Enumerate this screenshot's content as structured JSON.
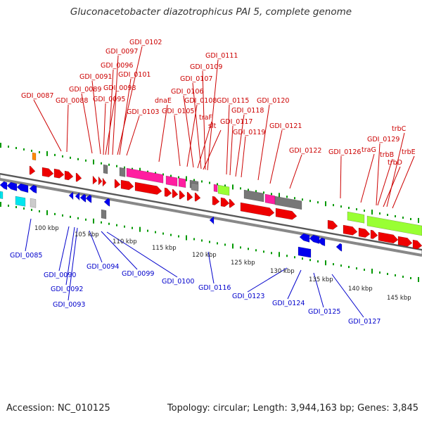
{
  "title": "Gluconacetobacter diazotrophicus PAI 5, complete genome",
  "footer": {
    "accession": "Accession: NC_010125",
    "summary": "Topology: circular; Length: 3,944,163 bp; Genes: 3,845"
  },
  "colors": {
    "forward_label": "#cc0000",
    "reverse_label": "#0000cc",
    "forward_gene": "#ee0000",
    "reverse_gene": "#0000ee",
    "backbone": "#999999",
    "ticks": "#009900",
    "pink": "#ff1ea0",
    "grey": "#777777",
    "lime": "#99ff33",
    "cyan": "#00e5ee",
    "orange": "#ff8800"
  },
  "scale_ticks": [
    "100 kbp",
    "105 kbp",
    "110 kbp",
    "115 kbp",
    "120 kbp",
    "125 kbp",
    "130 kbp",
    "135 kbp",
    "140 kbp",
    "145 kbp"
  ],
  "forward_labels": [
    "GDI_0102",
    "GDI_0097",
    "GDI_0096",
    "GDI_0091",
    "GDI_0101",
    "GDI_0089",
    "GDI_0098",
    "GDI_0087",
    "GDI_0088",
    "GDI_0095",
    "GDI_0103",
    "GDI_0111",
    "GDI_0109",
    "GDI_0107",
    "GDI_0106",
    "dnaE",
    "GDI_0108",
    "GDI_0115",
    "GDI_0120",
    "GDI_0105",
    "GDI_0118",
    "traF",
    "GDI_0117",
    "slt",
    "GDI_0121",
    "GDI_0119",
    "GDI_0122",
    "GDI_0126",
    "trbC",
    "GDI_0129",
    "traG",
    "trbE",
    "trbB",
    "trbD"
  ],
  "reverse_labels": [
    "GDI_0085",
    "GDI_0090",
    "GDI_0094",
    "GDI_0099",
    "GDI_0100",
    "GDI_0092",
    "GDI_0093",
    "GDI_0116",
    "GDI_0123",
    "GDI_0124",
    "GDI_0125",
    "GDI_0127"
  ]
}
